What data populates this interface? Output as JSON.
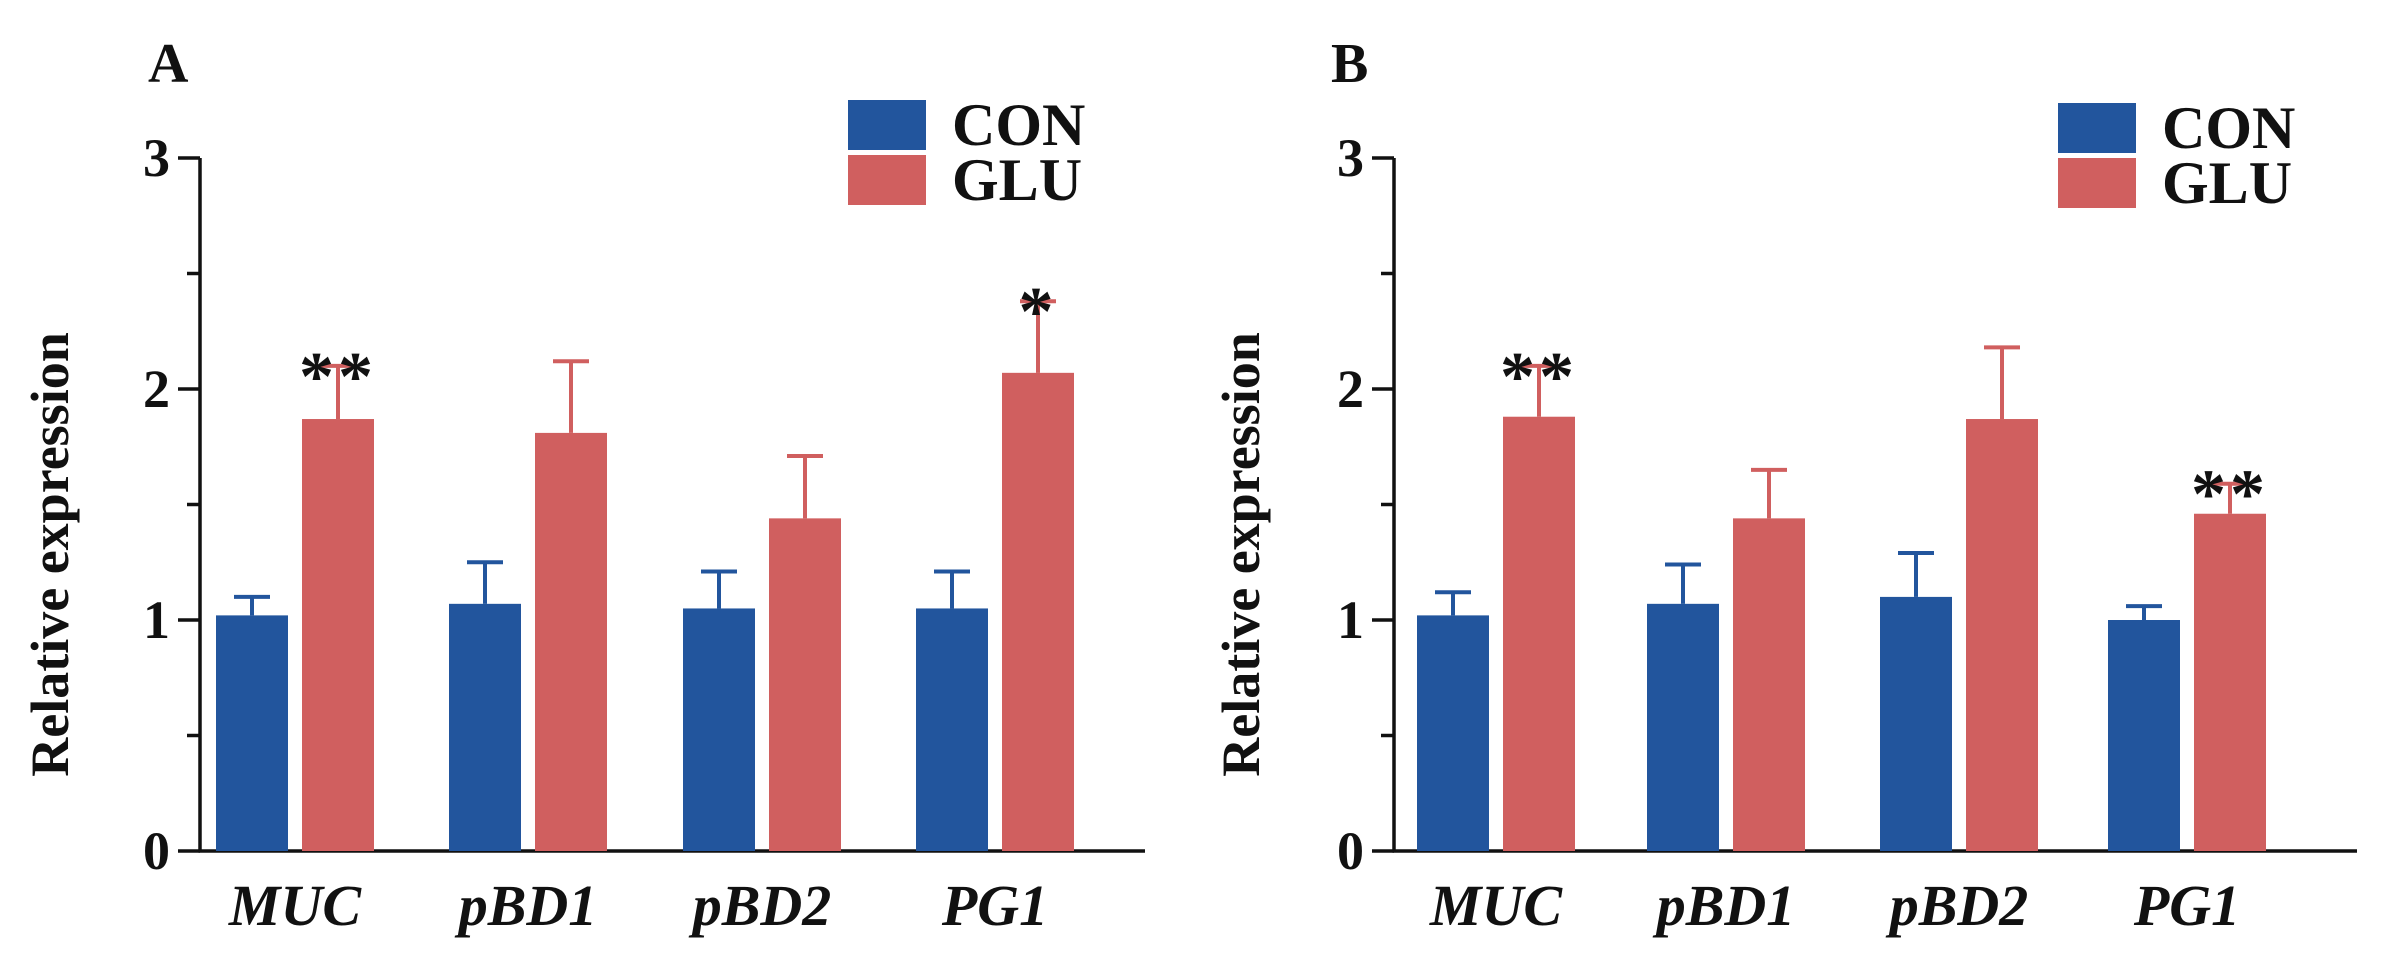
{
  "colors": {
    "CON": "#22559d",
    "GLU": "#d05f5f",
    "axis": "#111111"
  },
  "chart_data": [
    {
      "type": "bar",
      "panel_label": "A",
      "title": "",
      "xlabel": "",
      "ylabel": "Relative expression",
      "ylim": [
        0,
        3
      ],
      "yticks": [
        "0",
        "1",
        "2",
        "3"
      ],
      "categories": [
        "MUC",
        "pBD1",
        "pBD2",
        "PG1"
      ],
      "legend": {
        "position": "top-right",
        "entries": [
          "CON",
          "GLU"
        ]
      },
      "series": [
        {
          "name": "CON",
          "values": [
            1.02,
            1.07,
            1.05,
            1.05
          ],
          "errors": [
            0.08,
            0.18,
            0.16,
            0.16
          ]
        },
        {
          "name": "GLU",
          "values": [
            1.87,
            1.81,
            1.44,
            2.07
          ],
          "errors": [
            0.23,
            0.31,
            0.27,
            0.31
          ]
        }
      ],
      "annotations": [
        {
          "category": "MUC",
          "series": "GLU",
          "text": "**"
        },
        {
          "category": "PG1",
          "series": "GLU",
          "text": "*"
        }
      ]
    },
    {
      "type": "bar",
      "panel_label": "B",
      "title": "",
      "xlabel": "",
      "ylabel": "Relative expression",
      "ylim": [
        0,
        3
      ],
      "yticks": [
        "0",
        "1",
        "2",
        "3"
      ],
      "categories": [
        "MUC",
        "pBD1",
        "pBD2",
        "PG1"
      ],
      "legend": {
        "position": "top-right",
        "entries": [
          "CON",
          "GLU"
        ]
      },
      "series": [
        {
          "name": "CON",
          "values": [
            1.02,
            1.07,
            1.1,
            1.0
          ],
          "errors": [
            0.1,
            0.17,
            0.19,
            0.06
          ]
        },
        {
          "name": "GLU",
          "values": [
            1.88,
            1.44,
            1.87,
            1.46
          ],
          "errors": [
            0.22,
            0.21,
            0.31,
            0.13
          ]
        }
      ],
      "annotations": [
        {
          "category": "MUC",
          "series": "GLU",
          "text": "**"
        },
        {
          "category": "PG1",
          "series": "GLU",
          "text": "**"
        }
      ]
    }
  ]
}
